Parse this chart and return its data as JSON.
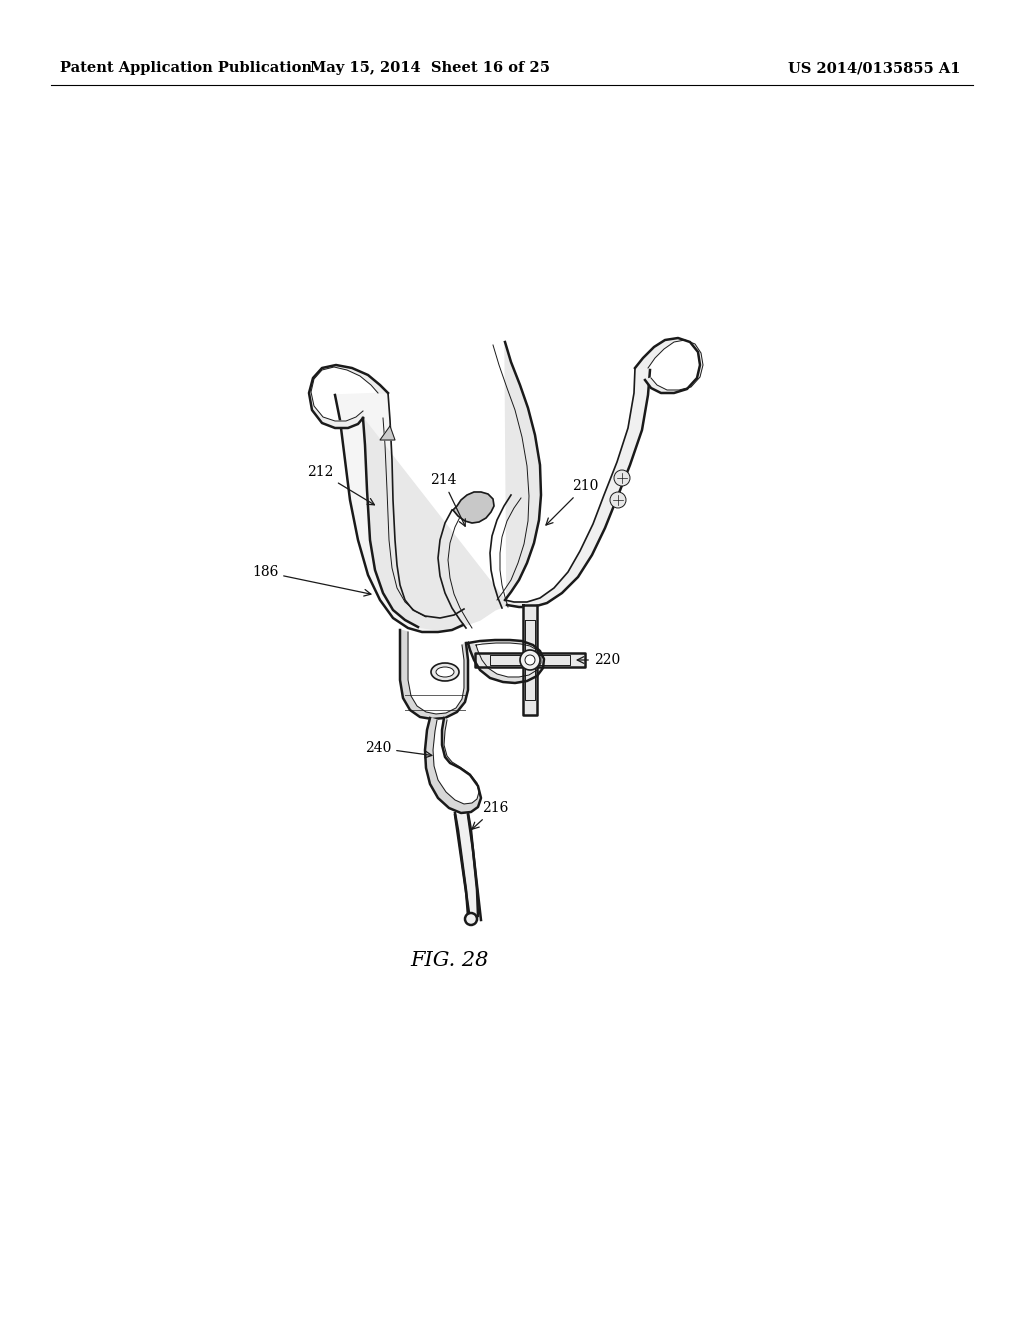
{
  "background_color": "#ffffff",
  "header_left": "Patent Application Publication",
  "header_center": "May 15, 2014  Sheet 16 of 25",
  "header_right": "US 2014/0135855 A1",
  "caption": "FIG. 28",
  "label_fontsize": 10,
  "caption_fontsize": 15,
  "header_fontsize": 10.5
}
